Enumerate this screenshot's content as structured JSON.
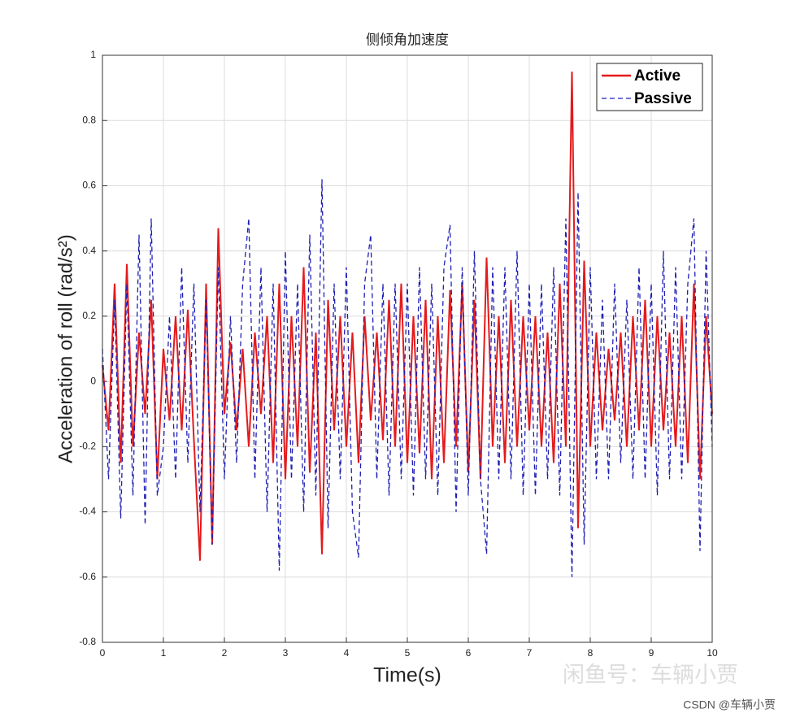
{
  "chart_data": {
    "type": "line",
    "title": "侧倾角加速度",
    "xlabel": "Time(s)",
    "ylabel": "Acceleration of roll (rad/s²)",
    "x": [
      0,
      0.1,
      0.2,
      0.3,
      0.4,
      0.5,
      0.6,
      0.7,
      0.8,
      0.9,
      1,
      1.1,
      1.2,
      1.3,
      1.4,
      1.5,
      1.6,
      1.7,
      1.8,
      1.9,
      2,
      2.1,
      2.2,
      2.3,
      2.4,
      2.5,
      2.6,
      2.7,
      2.8,
      2.9,
      3,
      3.1,
      3.2,
      3.3,
      3.4,
      3.5,
      3.6,
      3.7,
      3.8,
      3.9,
      4,
      4.1,
      4.2,
      4.3,
      4.4,
      4.5,
      4.6,
      4.7,
      4.8,
      4.9,
      5,
      5.1,
      5.2,
      5.3,
      5.4,
      5.5,
      5.6,
      5.7,
      5.8,
      5.9,
      6,
      6.1,
      6.2,
      6.3,
      6.4,
      6.5,
      6.6,
      6.7,
      6.8,
      6.9,
      7,
      7.1,
      7.2,
      7.3,
      7.4,
      7.5,
      7.6,
      7.7,
      7.8,
      7.9,
      8,
      8.1,
      8.2,
      8.3,
      8.4,
      8.5,
      8.6,
      8.7,
      8.8,
      8.9,
      9,
      9.1,
      9.2,
      9.3,
      9.4,
      9.5,
      9.6,
      9.7,
      9.8,
      9.9,
      10
    ],
    "series": [
      {
        "name": "Active",
        "color": "#e41a1c",
        "style": "solid",
        "values": [
          0.05,
          -0.15,
          0.3,
          -0.25,
          0.36,
          -0.2,
          0.15,
          -0.1,
          0.25,
          -0.3,
          0.1,
          -0.12,
          0.2,
          -0.15,
          0.22,
          -0.18,
          -0.55,
          0.3,
          -0.5,
          0.47,
          -0.1,
          0.12,
          -0.15,
          0.1,
          -0.2,
          0.15,
          -0.1,
          0.2,
          -0.25,
          0.3,
          -0.3,
          0.2,
          -0.2,
          0.35,
          -0.28,
          0.15,
          -0.53,
          0.25,
          -0.15,
          0.2,
          -0.2,
          0.15,
          -0.25,
          0.2,
          -0.12,
          0.15,
          -0.18,
          0.25,
          -0.2,
          0.3,
          -0.25,
          0.2,
          -0.22,
          0.25,
          -0.3,
          0.2,
          -0.25,
          0.28,
          -0.2,
          0.3,
          -0.28,
          0.25,
          -0.3,
          0.38,
          -0.2,
          0.2,
          -0.25,
          0.25,
          -0.2,
          0.2,
          -0.15,
          0.2,
          -0.2,
          0.15,
          -0.25,
          0.3,
          -0.2,
          0.95,
          -0.45,
          0.37,
          -0.2,
          0.15,
          -0.15,
          0.1,
          -0.12,
          0.15,
          -0.2,
          0.2,
          -0.15,
          0.25,
          -0.2,
          0.2,
          -0.15,
          0.15,
          -0.2,
          0.2,
          -0.25,
          0.3,
          -0.3,
          0.2,
          -0.1
        ]
      },
      {
        "name": "Passive",
        "color": "#1f1fb4",
        "style": "dashed",
        "values": [
          0.1,
          -0.3,
          0.25,
          -0.42,
          0.3,
          -0.35,
          0.45,
          -0.44,
          0.5,
          -0.35,
          -0.2,
          0.2,
          -0.3,
          0.35,
          -0.25,
          0.3,
          -0.4,
          0.25,
          -0.5,
          0.35,
          -0.3,
          0.2,
          -0.25,
          0.3,
          0.5,
          -0.3,
          0.35,
          -0.4,
          0.3,
          -0.58,
          0.4,
          -0.3,
          0.3,
          -0.4,
          0.45,
          -0.35,
          0.62,
          -0.45,
          0.3,
          -0.3,
          0.35,
          -0.4,
          -0.54,
          0.3,
          0.45,
          -0.3,
          0.3,
          -0.35,
          0.3,
          -0.3,
          0.3,
          -0.35,
          0.35,
          -0.3,
          0.3,
          -0.35,
          0.35,
          0.48,
          -0.4,
          0.35,
          -0.35,
          0.4,
          -0.3,
          -0.53,
          0.35,
          -0.3,
          0.35,
          -0.3,
          0.4,
          -0.35,
          0.3,
          -0.35,
          0.3,
          -0.3,
          0.35,
          -0.35,
          0.5,
          -0.6,
          0.58,
          -0.5,
          0.35,
          -0.3,
          0.25,
          -0.3,
          0.3,
          -0.25,
          0.25,
          -0.3,
          0.35,
          -0.3,
          0.3,
          -0.35,
          0.4,
          -0.3,
          0.35,
          -0.3,
          0.3,
          0.5,
          -0.52,
          0.4,
          -0.2
        ]
      }
    ],
    "xlim": [
      0,
      10
    ],
    "xticks": [
      0,
      1,
      2,
      3,
      4,
      5,
      6,
      7,
      8,
      9,
      10
    ],
    "ylim": [
      -0.8,
      1
    ],
    "yticks": [
      -0.8,
      -0.6,
      -0.4,
      -0.2,
      0,
      0.2,
      0.4,
      0.6,
      0.8,
      1
    ],
    "grid": true,
    "legend": "top-right",
    "watermarks": [
      "闲鱼号：车辆小贾",
      "CSDN @车辆小贾"
    ]
  }
}
